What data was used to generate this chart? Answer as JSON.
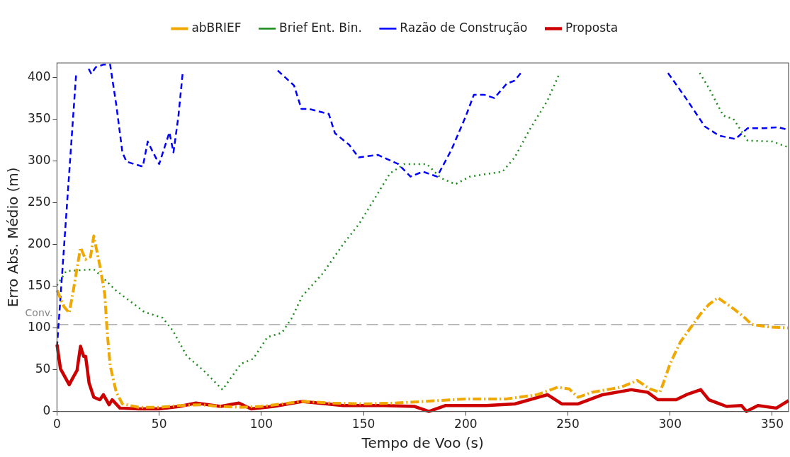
{
  "chart_data": {
    "type": "line",
    "xlabel": "Tempo de Voo (s)",
    "ylabel": "Erro Abs. Médio (m)",
    "xlim": [
      0,
      358
    ],
    "ylim": [
      0,
      417
    ],
    "xticks": [
      0,
      50,
      100,
      150,
      200,
      250,
      300,
      350
    ],
    "yticks": [
      0,
      50,
      100,
      150,
      200,
      250,
      300,
      350,
      400
    ],
    "grid": false,
    "legend": "top",
    "marker": "none",
    "ref_lines": [
      {
        "axis": "y",
        "value": 104,
        "label": "Conv.",
        "color": "#b0b0b0",
        "line_style": "dashed"
      }
    ],
    "series": [
      {
        "name": "abBRIEF",
        "color": "#f0a800",
        "line_style": "dashdot",
        "x": [
          0,
          3.5,
          6,
          8,
          11.5,
          14,
          16.4,
          18,
          21,
          23.4,
          24.5,
          26,
          29,
          32,
          40,
          50,
          60,
          70,
          80,
          90,
          100,
          110,
          120,
          135,
          150,
          165,
          180,
          200,
          220,
          235,
          245,
          250.6,
          255,
          262,
          276,
          280,
          284,
          290,
          295,
          296,
          300,
          305,
          310,
          315,
          319,
          323.4,
          331,
          335.7,
          340,
          348.6,
          357.7
        ],
        "values": [
          145,
          125,
          118,
          145,
          196,
          182,
          185,
          210,
          174,
          140,
          97,
          55,
          23,
          9,
          5,
          5,
          7,
          8,
          6,
          5,
          6,
          9,
          12,
          10,
          9,
          10,
          12,
          15,
          15,
          20,
          29,
          27,
          17,
          23,
          29,
          33,
          37,
          27,
          23,
          29,
          57,
          83,
          100,
          117,
          128,
          136,
          123,
          114,
          104,
          101,
          100
        ]
      },
      {
        "name": "Brief Ent. Bin.",
        "color": "#1a8a1a",
        "line_style": "dotted",
        "x": [
          0,
          4.5,
          18,
          21.7,
          28.7,
          42.7,
          51.7,
          56.6,
          63.6,
          71.7,
          81,
          90,
          96,
          103,
          110,
          114.7,
          120,
          130,
          140,
          148,
          155,
          163,
          170,
          181,
          188,
          195,
          202,
          218,
          224,
          231,
          240,
          246,
          280,
          314.5,
          319,
          326,
          331,
          338,
          350,
          358
        ],
        "values": [
          151,
          168,
          170,
          162,
          145,
          119,
          112,
          97,
          66,
          49,
          26,
          57,
          63,
          89,
          94,
          111,
          138,
          165,
          200,
          225,
          253,
          285,
          296,
          296,
          279,
          272,
          281,
          287,
          304,
          336,
          372,
          405,
          null,
          405,
          387,
          354,
          350,
          324,
          323,
          316
        ]
      },
      {
        "name": "Razão de Construção",
        "color": "#0000ff",
        "line_style": "dashed",
        "x": [
          0,
          9.4,
          12,
          15.5,
          16.8,
          19,
          22.7,
          26,
          29,
          32,
          34,
          37.8,
          42,
          44.4,
          47,
          50,
          55,
          57,
          59.4,
          61.5,
          80,
          108,
          116,
          119.6,
          123.4,
          133,
          136,
          143,
          147.6,
          157,
          167,
          173,
          179,
          186,
          193,
          200,
          204,
          209,
          214,
          220,
          224,
          227,
          260,
          299,
          307.7,
          317,
          324,
          332,
          338,
          346,
          353,
          358
        ],
        "values": [
          77,
          405,
          null,
          410,
          404,
          412,
          415,
          415,
          367,
          310,
          299,
          296,
          293,
          323,
          310,
          296,
          334,
          310,
          353,
          405,
          null,
          408,
          390,
          362,
          362,
          356,
          333,
          319,
          304,
          307,
          296,
          281,
          287,
          281,
          313,
          353,
          379,
          379,
          375,
          392,
          396,
          405,
          null,
          405,
          375,
          341,
          330,
          326,
          339,
          339,
          340,
          337
        ]
      },
      {
        "name": "Proposta",
        "color": "#cc0000",
        "line_style": "solid",
        "x": [
          0,
          1.7,
          6,
          7.7,
          9.8,
          11.5,
          13,
          14,
          15.7,
          18,
          21,
          22.7,
          25.5,
          27,
          30.8,
          40,
          50,
          60,
          68,
          80,
          89,
          95,
          106,
          120,
          140,
          160,
          175,
          182,
          190,
          210,
          224,
          240,
          247,
          255,
          267,
          281,
          289,
          294,
          303,
          308,
          315,
          319,
          327.6,
          335,
          337.4,
          343,
          352,
          358
        ],
        "values": [
          80,
          51,
          32,
          40,
          49,
          78,
          66,
          66,
          34,
          17,
          14,
          20,
          8,
          14,
          4,
          3,
          3,
          6,
          10,
          6,
          10,
          3,
          6,
          12,
          7,
          7,
          6,
          0,
          7,
          7,
          9,
          20,
          9,
          9,
          20,
          26,
          23,
          14,
          14,
          20,
          26,
          14,
          6,
          7,
          0,
          7,
          4,
          13
        ]
      }
    ]
  }
}
